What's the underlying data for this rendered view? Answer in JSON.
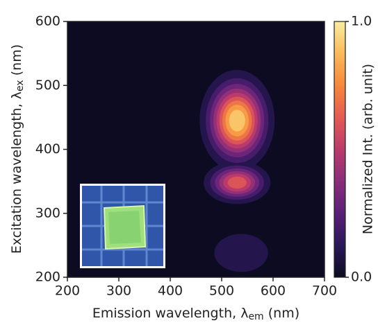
{
  "chart_data": {
    "type": "contour",
    "xlabel": [
      "Emission wavelength, λ",
      "em",
      " (nm)"
    ],
    "ylabel": [
      "Excitation wavelength, λ",
      "ex",
      " (nm)"
    ],
    "colorbar_label": "Normalized Int. (arb. unit)",
    "xlim": [
      200,
      700
    ],
    "xticks": [
      200,
      300,
      400,
      500,
      600,
      700
    ],
    "ylim": [
      200,
      600
    ],
    "yticks": [
      200,
      300,
      400,
      500,
      600
    ],
    "clim": [
      0,
      1
    ],
    "cticks": [
      {
        "value": 0,
        "label": "0.0"
      },
      {
        "value": 1,
        "label": "1.0"
      }
    ],
    "background": "#0c0b22",
    "colormap": [
      "#0c0b22",
      "#2a1858",
      "#5a1f78",
      "#8a2d7a",
      "#bb3a6c",
      "#e35a53",
      "#f6873b",
      "#fab95a",
      "#f8eea3"
    ],
    "levels": [
      0.1,
      0.2,
      0.3,
      0.4,
      0.5,
      0.6,
      0.7,
      0.8,
      0.9
    ],
    "peaks": [
      {
        "x": 530,
        "y": 445,
        "value": 1.0,
        "sigma_x": 34,
        "sigma_y": 37
      },
      {
        "x": 530,
        "y": 348,
        "value": 0.7,
        "sigma_x": 33,
        "sigma_y": 17
      },
      {
        "x": 538,
        "y": 238,
        "value": 0.15,
        "sigma_x": 58,
        "sigma_y": 33
      }
    ]
  }
}
